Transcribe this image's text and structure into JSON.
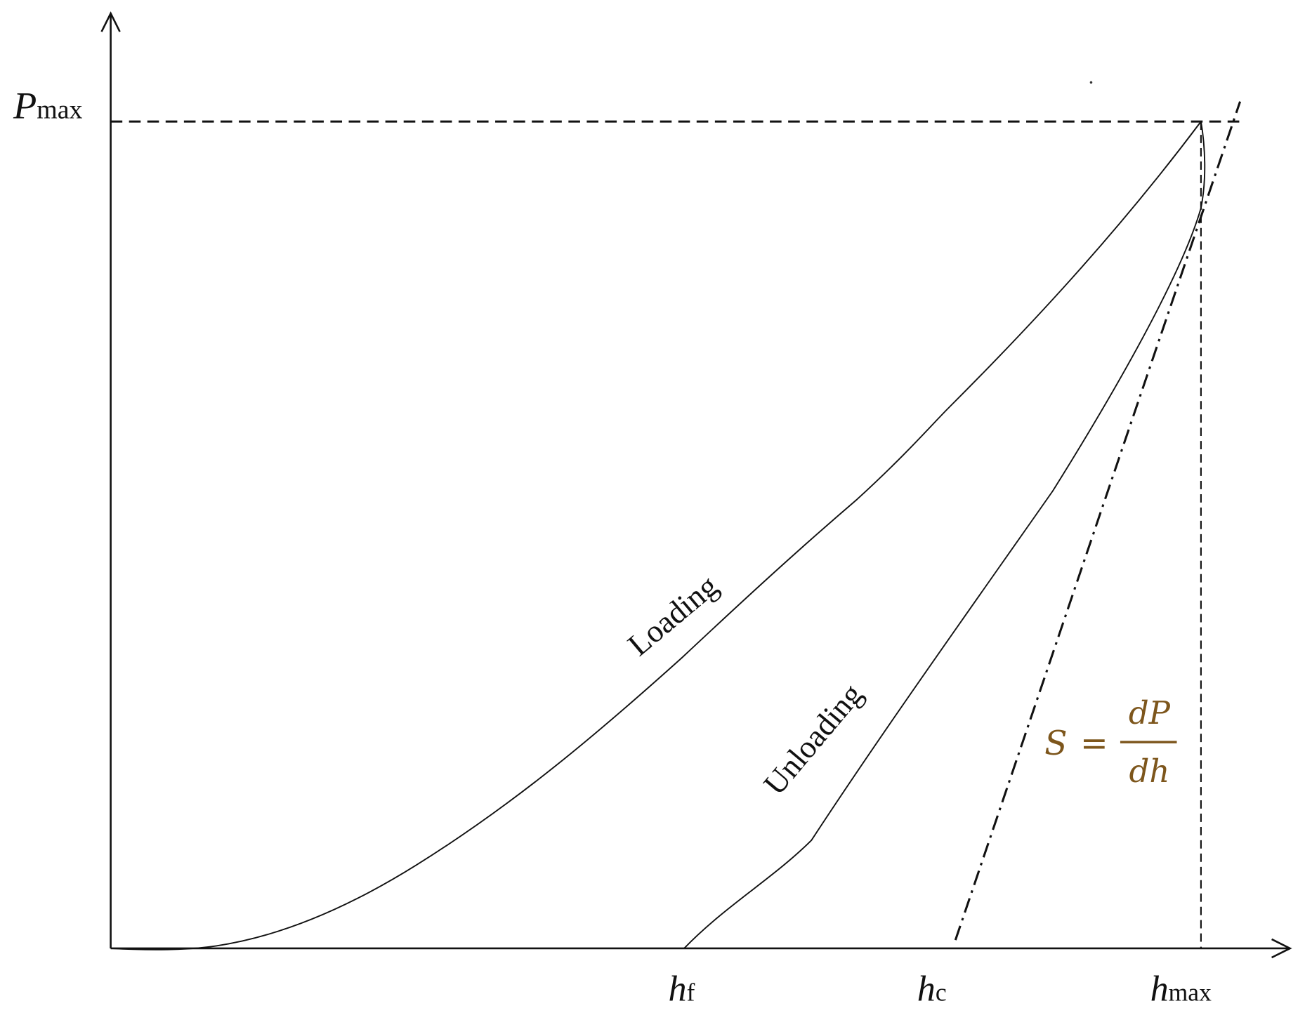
{
  "axis_labels": {
    "p_max": {
      "main": "P",
      "sub": "max"
    },
    "h_f": {
      "main": "h",
      "sub": "f"
    },
    "h_c": {
      "main": "h",
      "sub": "c"
    },
    "h_max": {
      "main": "h",
      "sub": "max"
    }
  },
  "curve_labels": {
    "loading": "Loading",
    "unloading": "Unloading"
  },
  "equation": {
    "lhs": "S",
    "eq": "=",
    "numerator": "dP",
    "denominator": "dh"
  }
}
